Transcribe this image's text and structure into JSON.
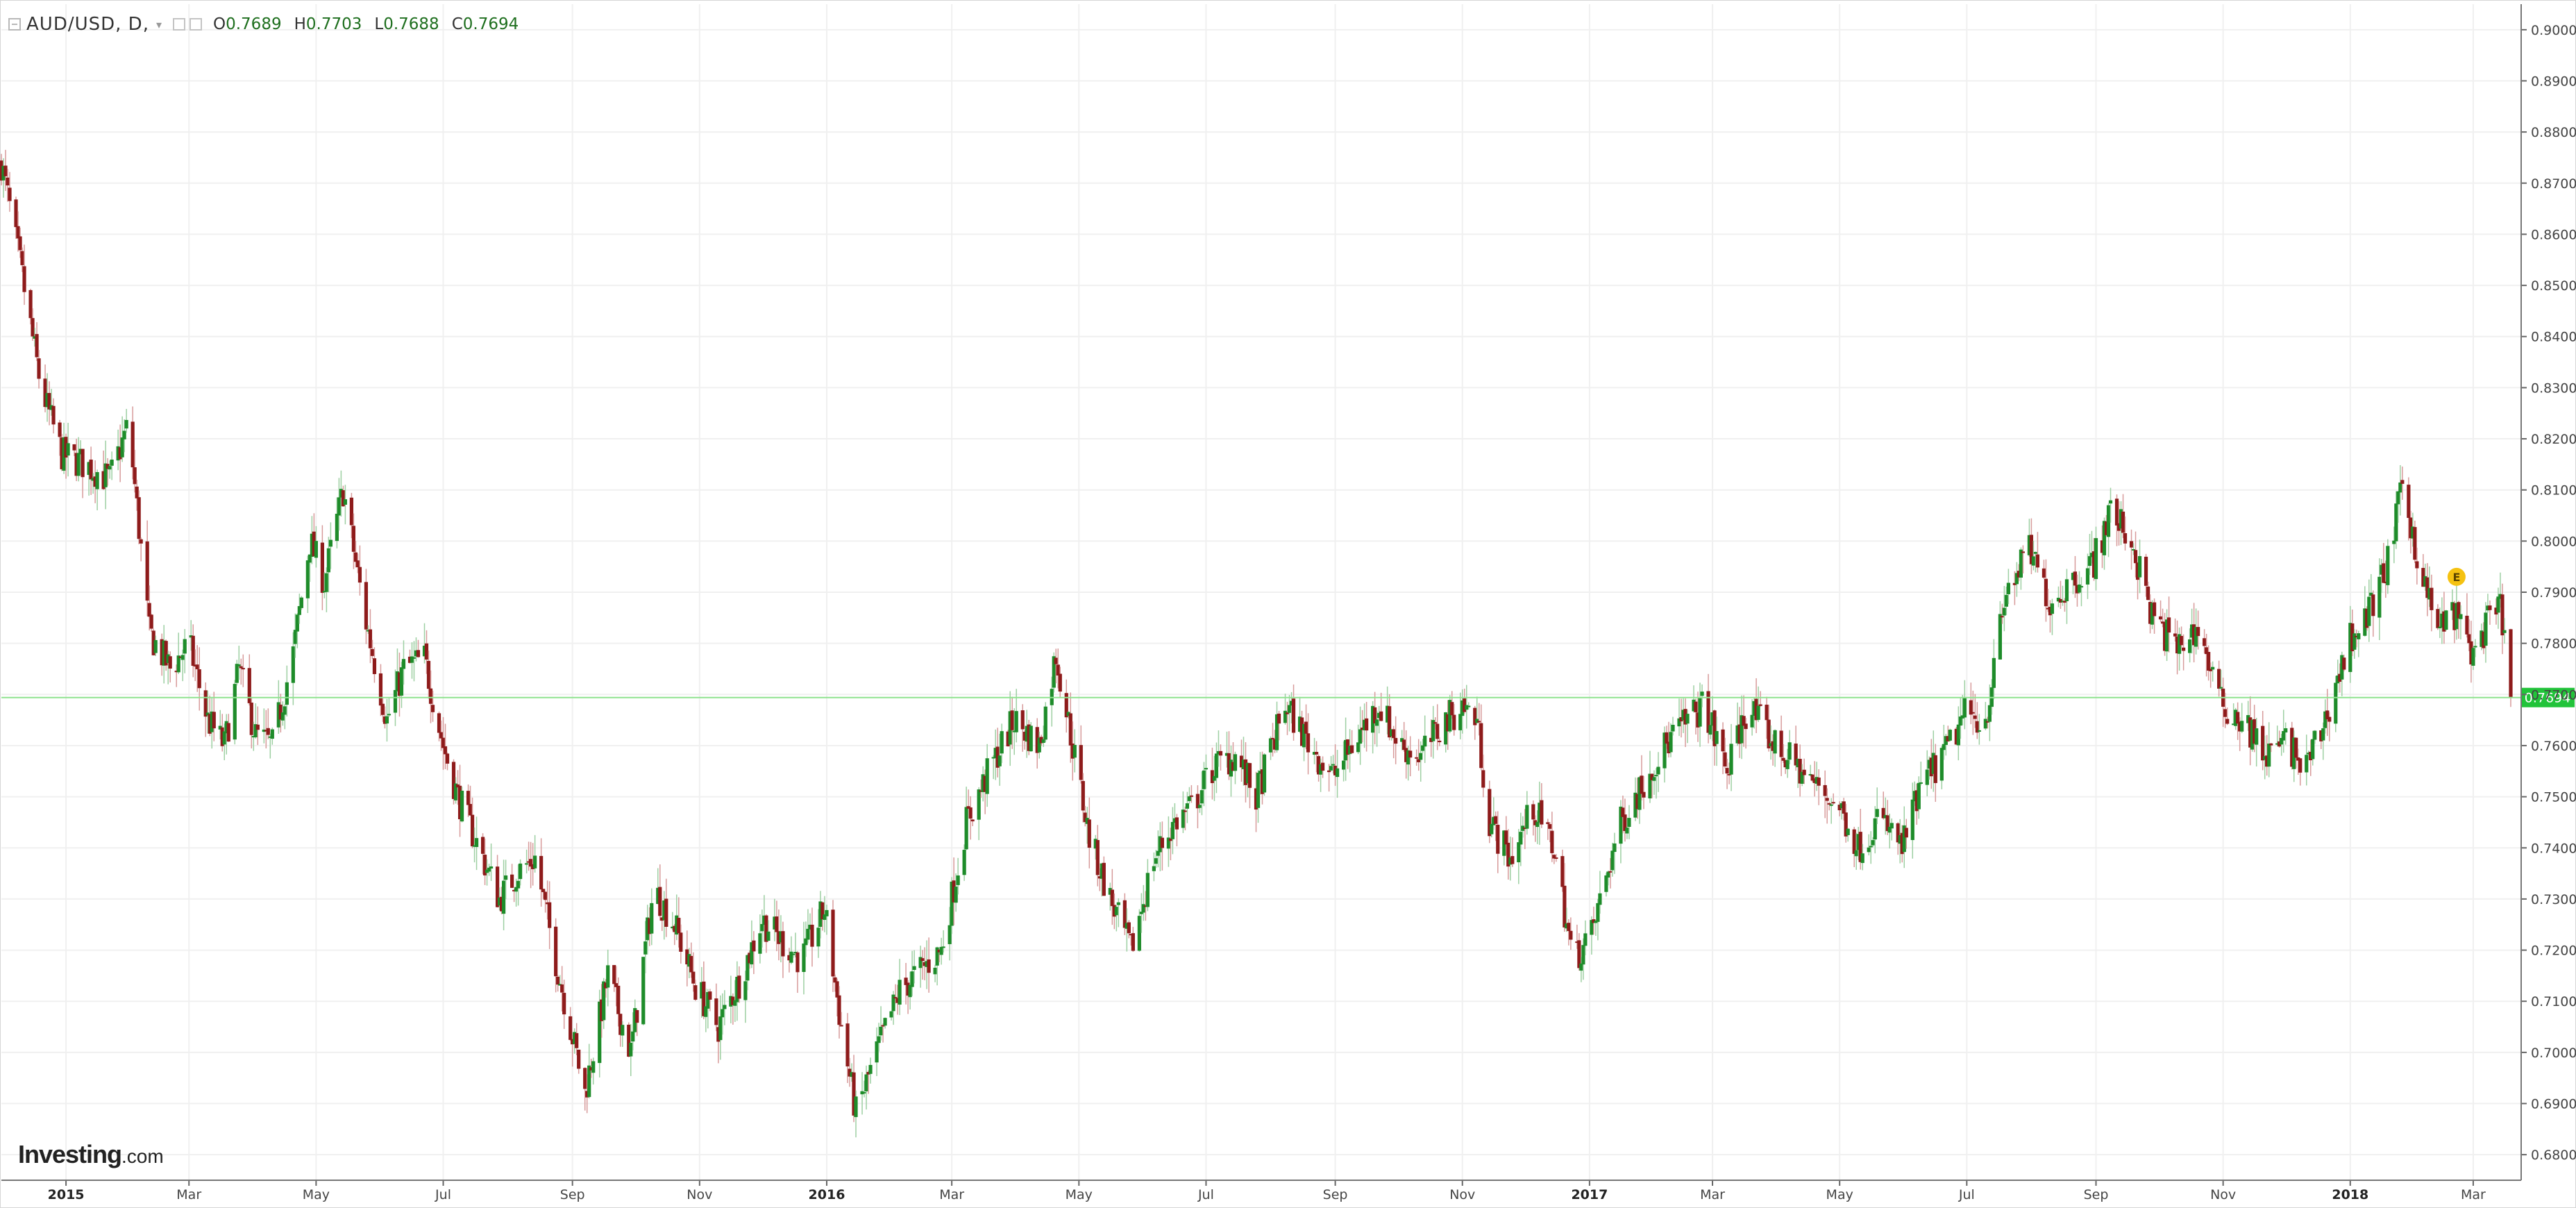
{
  "symbol": {
    "pair": "AUD/USD",
    "interval": "D",
    "label": "AUD/USD, D,"
  },
  "ohlc": {
    "open_key": "O",
    "open": "0.7689",
    "high_key": "H",
    "high": "0.7703",
    "low_key": "L",
    "low": "0.7688",
    "close_key": "C",
    "close": "0.7694"
  },
  "brand": {
    "name": "Investing",
    "domain": ".com"
  },
  "event_marker": {
    "label": "E"
  },
  "current_price_label": "0.7694",
  "colors": {
    "up": "#1e8c2a",
    "down": "#8e1b1b",
    "price_line": "#8fe28f",
    "price_badge": "#22c33a",
    "event": "#f5c211",
    "grid": "#f0f0f0"
  },
  "chart_data": {
    "type": "candlestick",
    "title": "AUD/USD, D,",
    "y_axis": {
      "position": "right",
      "range": [
        0.675,
        0.905
      ],
      "ticks": [
        "0.9000",
        "0.8900",
        "0.8800",
        "0.8700",
        "0.8600",
        "0.8500",
        "0.8400",
        "0.8300",
        "0.8200",
        "0.8100",
        "0.8000",
        "0.7900",
        "0.7800",
        "0.7700",
        "0.7600",
        "0.7500",
        "0.7400",
        "0.7300",
        "0.7200",
        "0.7100",
        "0.7000",
        "0.6900",
        "0.6800"
      ]
    },
    "x_axis": {
      "labels": [
        "2015",
        "Mar",
        "May",
        "Jul",
        "Sep",
        "Nov",
        "2016",
        "Mar",
        "May",
        "Jul",
        "Sep",
        "Nov",
        "2017",
        "Mar",
        "May",
        "Jul",
        "Sep",
        "Nov",
        "2018",
        "Mar"
      ],
      "bold": [
        "2015",
        "2016",
        "2017",
        "2018"
      ],
      "range_months": [
        "2014-12",
        "2018-03"
      ]
    },
    "grid": true,
    "last_price": 0.7694,
    "price_path": [
      [
        "2014-12-01",
        0.874
      ],
      [
        "2014-12-10",
        0.854
      ],
      [
        "2014-12-20",
        0.83
      ],
      [
        "2014-12-30",
        0.817
      ],
      [
        "2015-01-10",
        0.815
      ],
      [
        "2015-01-22",
        0.812
      ],
      [
        "2015-01-31",
        0.823
      ],
      [
        "2015-02-10",
        0.782
      ],
      [
        "2015-02-20",
        0.775
      ],
      [
        "2015-03-01",
        0.78
      ],
      [
        "2015-03-10",
        0.765
      ],
      [
        "2015-03-18",
        0.76
      ],
      [
        "2015-03-25",
        0.775
      ],
      [
        "2015-04-02",
        0.762
      ],
      [
        "2015-04-10",
        0.76
      ],
      [
        "2015-04-20",
        0.778
      ],
      [
        "2015-04-28",
        0.8
      ],
      [
        "2015-05-05",
        0.792
      ],
      [
        "2015-05-14",
        0.81
      ],
      [
        "2015-05-25",
        0.784
      ],
      [
        "2015-06-04",
        0.765
      ],
      [
        "2015-06-12",
        0.775
      ],
      [
        "2015-06-22",
        0.777
      ],
      [
        "2015-07-01",
        0.76
      ],
      [
        "2015-07-08",
        0.75
      ],
      [
        "2015-07-18",
        0.74
      ],
      [
        "2015-07-28",
        0.73
      ],
      [
        "2015-08-05",
        0.735
      ],
      [
        "2015-08-14",
        0.738
      ],
      [
        "2015-08-24",
        0.718
      ],
      [
        "2015-09-07",
        0.692
      ],
      [
        "2015-09-18",
        0.715
      ],
      [
        "2015-09-29",
        0.7
      ],
      [
        "2015-10-10",
        0.732
      ],
      [
        "2015-10-20",
        0.725
      ],
      [
        "2015-10-30",
        0.713
      ],
      [
        "2015-11-10",
        0.705
      ],
      [
        "2015-11-20",
        0.714
      ],
      [
        "2015-12-01",
        0.726
      ],
      [
        "2015-12-10",
        0.722
      ],
      [
        "2015-12-20",
        0.718
      ],
      [
        "2015-12-31",
        0.728
      ],
      [
        "2016-01-08",
        0.705
      ],
      [
        "2016-01-15",
        0.688
      ],
      [
        "2016-01-25",
        0.7
      ],
      [
        "2016-02-05",
        0.712
      ],
      [
        "2016-02-15",
        0.716
      ],
      [
        "2016-02-25",
        0.72
      ],
      [
        "2016-03-08",
        0.745
      ],
      [
        "2016-03-20",
        0.756
      ],
      [
        "2016-03-31",
        0.765
      ],
      [
        "2016-04-12",
        0.76
      ],
      [
        "2016-04-20",
        0.778
      ],
      [
        "2016-04-28",
        0.76
      ],
      [
        "2016-05-06",
        0.742
      ],
      [
        "2016-05-16",
        0.73
      ],
      [
        "2016-05-26",
        0.72
      ],
      [
        "2016-06-06",
        0.738
      ],
      [
        "2016-06-16",
        0.745
      ],
      [
        "2016-06-24",
        0.748
      ],
      [
        "2016-07-05",
        0.756
      ],
      [
        "2016-07-15",
        0.758
      ],
      [
        "2016-07-25",
        0.75
      ],
      [
        "2016-08-08",
        0.768
      ],
      [
        "2016-08-20",
        0.76
      ],
      [
        "2016-08-31",
        0.754
      ],
      [
        "2016-09-12",
        0.762
      ],
      [
        "2016-09-22",
        0.768
      ],
      [
        "2016-10-02",
        0.76
      ],
      [
        "2016-10-12",
        0.758
      ],
      [
        "2016-10-22",
        0.764
      ],
      [
        "2016-11-01",
        0.768
      ],
      [
        "2016-11-08",
        0.765
      ],
      [
        "2016-11-14",
        0.745
      ],
      [
        "2016-11-24",
        0.738
      ],
      [
        "2016-12-05",
        0.748
      ],
      [
        "2016-12-15",
        0.74
      ],
      [
        "2016-12-24",
        0.718
      ],
      [
        "2017-01-02",
        0.723
      ],
      [
        "2017-01-15",
        0.744
      ],
      [
        "2017-01-31",
        0.756
      ],
      [
        "2017-02-10",
        0.762
      ],
      [
        "2017-02-25",
        0.768
      ],
      [
        "2017-03-08",
        0.755
      ],
      [
        "2017-03-18",
        0.768
      ],
      [
        "2017-03-31",
        0.76
      ],
      [
        "2017-04-10",
        0.756
      ],
      [
        "2017-04-20",
        0.752
      ],
      [
        "2017-05-01",
        0.748
      ],
      [
        "2017-05-10",
        0.74
      ],
      [
        "2017-05-20",
        0.746
      ],
      [
        "2017-05-31",
        0.74
      ],
      [
        "2017-06-10",
        0.753
      ],
      [
        "2017-06-20",
        0.758
      ],
      [
        "2017-06-30",
        0.766
      ],
      [
        "2017-07-10",
        0.765
      ],
      [
        "2017-07-20",
        0.79
      ],
      [
        "2017-07-31",
        0.798
      ],
      [
        "2017-08-10",
        0.788
      ],
      [
        "2017-08-20",
        0.792
      ],
      [
        "2017-08-31",
        0.796
      ],
      [
        "2017-09-08",
        0.806
      ],
      [
        "2017-09-18",
        0.8
      ],
      [
        "2017-09-28",
        0.785
      ],
      [
        "2017-10-10",
        0.779
      ],
      [
        "2017-10-20",
        0.783
      ],
      [
        "2017-10-31",
        0.768
      ],
      [
        "2017-11-10",
        0.765
      ],
      [
        "2017-11-22",
        0.758
      ],
      [
        "2017-12-01",
        0.761
      ],
      [
        "2017-12-10",
        0.755
      ],
      [
        "2017-12-20",
        0.765
      ],
      [
        "2018-01-01",
        0.781
      ],
      [
        "2018-01-10",
        0.786
      ],
      [
        "2018-01-20",
        0.797
      ],
      [
        "2018-01-26",
        0.811
      ],
      [
        "2018-02-05",
        0.792
      ],
      [
        "2018-02-12",
        0.783
      ],
      [
        "2018-02-20",
        0.786
      ],
      [
        "2018-03-01",
        0.778
      ],
      [
        "2018-03-08",
        0.784
      ],
      [
        "2018-03-14",
        0.787
      ],
      [
        "2018-03-19",
        0.7694
      ]
    ]
  }
}
